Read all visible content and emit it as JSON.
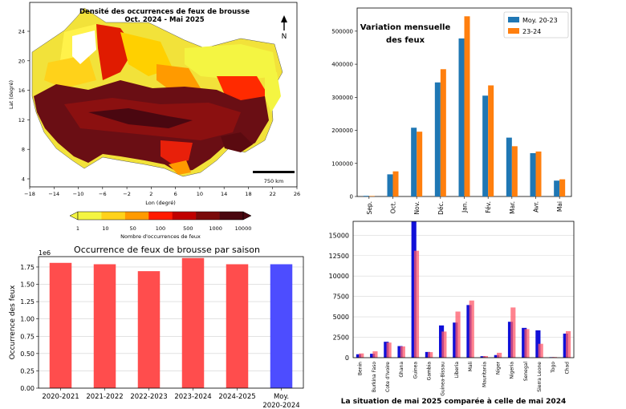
{
  "chart_data": [
    {
      "type": "map",
      "title": "Densité des occurrences de feux de brousse",
      "subtitle": "Oct. 2024 - Mai 2025",
      "north_label": "N",
      "xlabel": "Lon (degré)",
      "ylabel": "Lat (degré)",
      "x_ticks": [
        "−18",
        "−14",
        "−10",
        "−6",
        "−2",
        "2",
        "6",
        "10",
        "14",
        "18",
        "22",
        "26"
      ],
      "y_ticks": [
        "4",
        "8",
        "12",
        "16",
        "20",
        "24"
      ],
      "scale_label": "750 km",
      "colorbar": {
        "label": "Nombre d'occurrences de feux",
        "ticks": [
          "1",
          "10",
          "50",
          "100",
          "500",
          "1000",
          "10000"
        ],
        "colors": [
          "#f4f542",
          "#ffd21a",
          "#ff9a00",
          "#ff1a00",
          "#c00000",
          "#7a0a0a",
          "#4a0710"
        ]
      }
    },
    {
      "type": "bar",
      "title": "Variation mensuelle des feux",
      "categories": [
        "Sep.",
        "Oct.",
        "Nov.",
        "Déc.",
        "Jan.",
        "Fév.",
        "Mar.",
        "Avr.",
        "Mai"
      ],
      "y_ticks": [
        "0",
        "100000",
        "200000",
        "300000",
        "400000",
        "500000"
      ],
      "ylim": [
        0,
        570000
      ],
      "series": [
        {
          "name": "Moy. 20-23",
          "color": "#1f77b4",
          "values": [
            2000,
            67000,
            208000,
            345000,
            478000,
            305000,
            178000,
            131000,
            48000
          ]
        },
        {
          "name": "23-24",
          "color": "#ff7f0e",
          "values": [
            1500,
            76000,
            196000,
            385000,
            545000,
            336000,
            152000,
            136000,
            52000
          ]
        }
      ],
      "legend": "top-right"
    },
    {
      "type": "bar",
      "title": "Occurrence de feux de brousse par saison",
      "scale_label": "1e6",
      "ylabel": "Occurrence des feux",
      "categories": [
        [
          "2020-2021"
        ],
        [
          "2021-2022"
        ],
        [
          "2022-2023"
        ],
        [
          "2023-2024"
        ],
        [
          "2024-2025"
        ],
        [
          "Moy.",
          "2020-2024"
        ]
      ],
      "y_ticks": [
        "0.00",
        "0.25",
        "0.50",
        "0.75",
        "1.00",
        "1.25",
        "1.50",
        "1.75"
      ],
      "ylim": [
        0,
        1.9
      ],
      "values": [
        1.81,
        1.79,
        1.69,
        1.88,
        1.79,
        1.79
      ],
      "colors": [
        "#ff4d4d",
        "#ff4d4d",
        "#ff4d4d",
        "#ff4d4d",
        "#ff4d4d",
        "#4d4dff"
      ],
      "grid": true
    },
    {
      "type": "bar",
      "title": "La situation de mai 2025 comparée à celle de mai 2024",
      "categories": [
        "Benin",
        "Burkina Faso",
        "Cote d'Ivoire",
        "Ghana",
        "Guinea",
        "Gambia",
        "Guinea-Bissau",
        "Liberia",
        "Mali",
        "Mauritania",
        "Niger",
        "Nigeria",
        "Senegal",
        "Sierra Leone",
        "Togo",
        "Chad"
      ],
      "y_ticks": [
        "0",
        "2500",
        "5000",
        "7500",
        "10000",
        "12500",
        "15000"
      ],
      "ylim": [
        0,
        16700
      ],
      "series": [
        {
          "color": "#1010d8",
          "values": [
            420,
            480,
            1950,
            1420,
            16700,
            700,
            3950,
            4300,
            6450,
            180,
            320,
            4400,
            3650,
            3350,
            60,
            2950
          ]
        },
        {
          "color": "#ff5a6a",
          "values": [
            520,
            780,
            1850,
            1380,
            13100,
            680,
            3200,
            5650,
            7000,
            200,
            600,
            6150,
            3500,
            1700,
            80,
            3250
          ]
        }
      ],
      "grid": true
    }
  ]
}
